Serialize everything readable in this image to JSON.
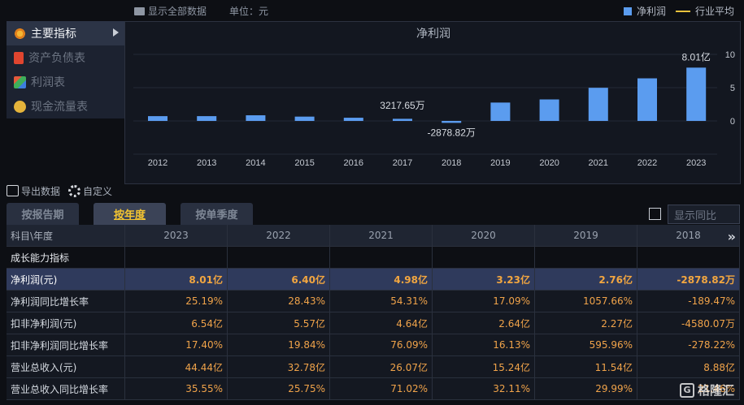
{
  "topbar": {
    "show_all": "显示全部数据",
    "unit": "单位：元",
    "legend_bar": "净利润",
    "legend_line": "行业平均"
  },
  "menu": [
    {
      "label": "主要指标",
      "icon": "gear-flower-icon",
      "active": true
    },
    {
      "label": "资产负债表",
      "icon": "document-icon",
      "active": false
    },
    {
      "label": "利润表",
      "icon": "cube-icon",
      "active": false
    },
    {
      "label": "现金流量表",
      "icon": "coins-icon",
      "active": false
    }
  ],
  "chart_data": {
    "type": "bar",
    "title": "净利润",
    "categories": [
      "2012",
      "2013",
      "2014",
      "2015",
      "2016",
      "2017",
      "2018",
      "2019",
      "2020",
      "2021",
      "2022",
      "2023"
    ],
    "series": [
      {
        "name": "净利润",
        "values": [
          0.72,
          0.72,
          0.85,
          0.65,
          0.48,
          0.32,
          -0.29,
          2.76,
          3.23,
          4.98,
          6.4,
          8.01
        ]
      }
    ],
    "y_unit": "亿",
    "ylim": [
      -0.5,
      10.5
    ],
    "yticks": [
      0,
      5,
      10
    ],
    "annotations": [
      {
        "x": "2017",
        "text": "3217.65万"
      },
      {
        "x": "2018",
        "text": "-2878.82万"
      },
      {
        "x": "2023",
        "text": "8.01亿"
      }
    ],
    "colors": {
      "bar": "#5b9cef",
      "line": "#e9c23c"
    }
  },
  "toolbar": {
    "export": "导出数据",
    "customize": "自定义"
  },
  "tabs": [
    {
      "label": "按报告期",
      "active": false
    },
    {
      "label": "按年度",
      "active": true
    },
    {
      "label": "按单季度",
      "active": false
    }
  ],
  "yoy_toggle": {
    "label": "显示同比",
    "checked": false
  },
  "table": {
    "header": [
      "科目\\年度",
      "2023",
      "2022",
      "2021",
      "2020",
      "2019",
      "2018"
    ],
    "section": "成长能力指标",
    "rows": [
      {
        "name": "净利润(元)",
        "values": [
          "8.01亿",
          "6.40亿",
          "4.98亿",
          "3.23亿",
          "2.76亿",
          "-2878.82万"
        ],
        "highlight": true
      },
      {
        "name": "净利润同比增长率",
        "values": [
          "25.19%",
          "28.43%",
          "54.31%",
          "17.09%",
          "1057.66%",
          "-189.47%"
        ]
      },
      {
        "name": "扣非净利润(元)",
        "values": [
          "6.54亿",
          "5.57亿",
          "4.64亿",
          "2.64亿",
          "2.27亿",
          "-4580.07万"
        ]
      },
      {
        "name": "扣非净利润同比增长率",
        "values": [
          "17.40%",
          "19.84%",
          "76.09%",
          "16.13%",
          "595.96%",
          "-278.22%"
        ]
      },
      {
        "name": "营业总收入(元)",
        "values": [
          "44.44亿",
          "32.78亿",
          "26.07亿",
          "15.24亿",
          "11.54亿",
          "8.88亿"
        ]
      },
      {
        "name": "营业总收入同比增长率",
        "values": [
          "35.55%",
          "25.75%",
          "71.02%",
          "32.11%",
          "29.99%",
          "21.46%"
        ]
      }
    ]
  },
  "watermark": "格隆汇"
}
